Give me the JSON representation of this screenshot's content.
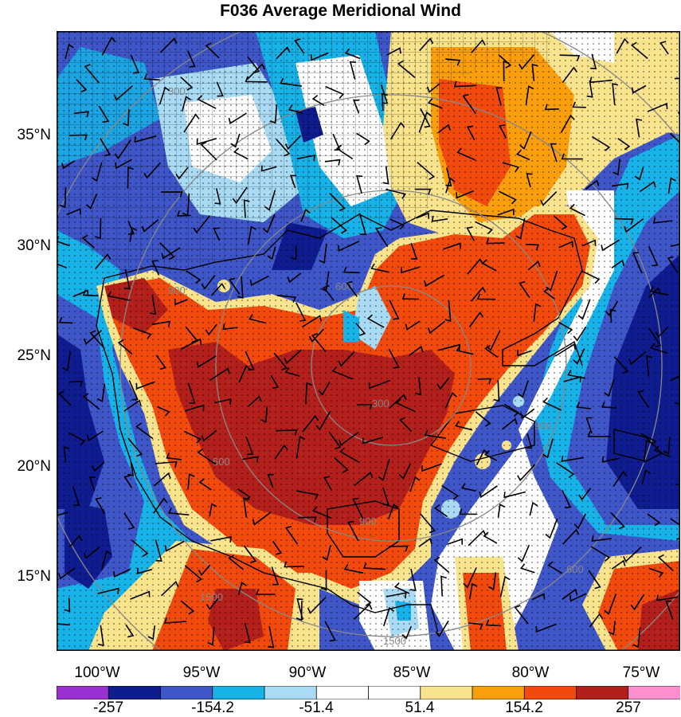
{
  "title": "F036 Average Meridional Wind",
  "map": {
    "lat_labels": [
      "35°N",
      "30°N",
      "25°N",
      "20°N",
      "15°N"
    ],
    "lon_labels": [
      "100°W",
      "95°W",
      "90°W",
      "85°W",
      "80°W",
      "75°W"
    ],
    "contour_labels": [
      "300",
      "600",
      "900",
      "900",
      "600",
      "300",
      "900",
      "1500",
      "1500",
      "600"
    ],
    "field": "meridional wind (shaded) with wind barbs and stippling"
  },
  "colorbar": {
    "labels": [
      "-257",
      "-154.2",
      "-51.4",
      "51.4",
      "154.2",
      "257"
    ],
    "colors": [
      "#9b30d2",
      "#0f1c8f",
      "#3e56c8",
      "#17b3e8",
      "#a9dcf4",
      "#ffffff",
      "#ffffff",
      "#f9e38c",
      "#fa9e0c",
      "#f24a0c",
      "#b3201b",
      "#ff8fcf"
    ]
  }
}
